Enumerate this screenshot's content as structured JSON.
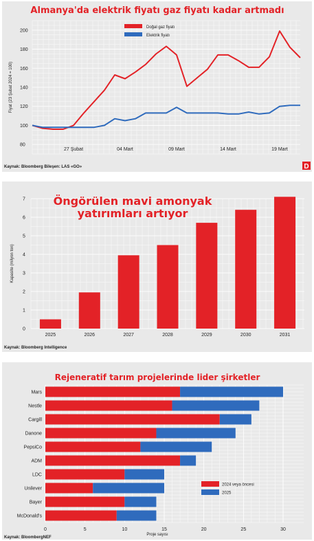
{
  "colors": {
    "red": "#e32227",
    "blue": "#2f6bbd",
    "panel": "#e9e9e9"
  },
  "chart_data": [
    {
      "type": "line",
      "title": "Almanya'da elektrik fiyatı gaz fiyatı kadar artmadı",
      "ylabel": "Fiyat (23 Şubat 2024 = 100)",
      "ylim": [
        70,
        210
      ],
      "yticks": [
        80,
        100,
        120,
        140,
        160,
        180,
        200
      ],
      "xtick_labels": [
        "27 Şubat",
        "04 Mart",
        "09 Mart",
        "14 Mart",
        "19 Mart"
      ],
      "xtick_index": [
        4,
        9,
        14,
        19,
        24
      ],
      "source": "Kaynak: Bloomberg Bileşen: LAS «GO»",
      "logo": "D",
      "grid": true,
      "legend": "top-center",
      "series": [
        {
          "name": "Doğal gaz fiyatı",
          "color": "#e32227",
          "values": [
            100,
            97,
            96,
            96,
            100,
            113,
            125,
            137,
            153,
            149,
            156,
            164,
            175,
            183,
            174,
            141,
            150,
            159,
            174,
            174,
            168,
            161,
            161,
            172,
            199,
            182,
            171
          ]
        },
        {
          "name": "Elektrik fiyatı",
          "color": "#2f6bbd",
          "values": [
            100,
            98,
            98,
            98,
            98,
            98,
            98,
            100,
            107,
            105,
            107,
            113,
            113,
            113,
            119,
            113,
            113,
            113,
            113,
            112,
            112,
            114,
            112,
            113,
            120,
            121,
            121
          ]
        }
      ]
    },
    {
      "type": "bar",
      "title": "Öngörülen mavi amonyak yatırımları artıyor",
      "title_lines": [
        "Öngörülen mavi amonyak",
        "yatırımları artıyor"
      ],
      "ylabel": "Kapasite (milyon ton)",
      "ylim": [
        0,
        7
      ],
      "yticks": [
        0,
        1,
        2,
        3,
        4,
        5,
        6,
        7
      ],
      "categories": [
        "2025",
        "2026",
        "2027",
        "2028",
        "2029",
        "2030",
        "2031"
      ],
      "values": [
        0.5,
        1.95,
        3.95,
        4.5,
        5.7,
        6.4,
        7.1
      ],
      "source": "Kaynak: Bloomberg Intelligence",
      "color": "#e32227",
      "grid": true
    },
    {
      "type": "bar",
      "orientation": "horizontal",
      "stacked": true,
      "title": "Rejeneratif tarım projelerinde lider şirketler",
      "xlabel": "Proje sayısı",
      "xlim": [
        0,
        30
      ],
      "xticks": [
        0,
        5,
        10,
        15,
        20,
        25,
        30
      ],
      "categories": [
        "Mars",
        "Nestle",
        "Cargill",
        "Danone",
        "PepsiCo",
        "ADM",
        "LDC",
        "Unilever",
        "Bayer",
        "McDonald's"
      ],
      "series": [
        {
          "name": "2024 veya öncesi",
          "color": "#e32227",
          "values": [
            17,
            16,
            22,
            14,
            12,
            17,
            10,
            6,
            10,
            9
          ]
        },
        {
          "name": "2025",
          "color": "#2f6bbd",
          "values": [
            13,
            11,
            4,
            10,
            9,
            2,
            5,
            9,
            4,
            5
          ]
        }
      ],
      "source": "Kaynak: BloombergNEF",
      "legend": "right"
    }
  ]
}
